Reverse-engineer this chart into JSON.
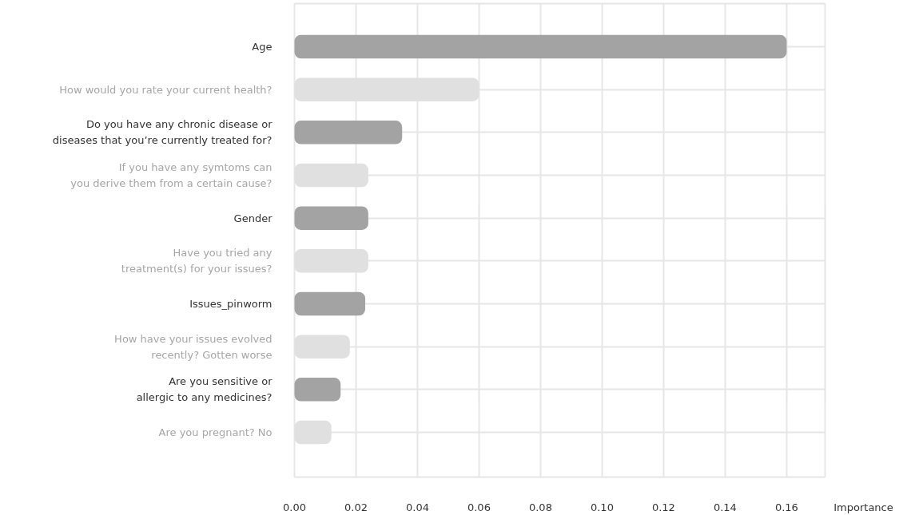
{
  "chart_data": {
    "type": "bar",
    "orientation": "horizontal",
    "xlabel": "Importance",
    "categories": [
      "Age",
      "How would you rate your current health?",
      "Do you have any chronic disease or\ndiseases that you’re currently treated for?",
      "If you have any symtoms can\nyou derive them from a certain cause?",
      "Gender",
      "Have you tried any\ntreatment(s) for your issues?",
      "Issues_pinworm",
      "How have your issues evolved\nrecently? Gotten worse",
      "Are you sensitive or\nallergic to any medicines?",
      "Are you pregnant? No"
    ],
    "values": [
      0.16,
      0.06,
      0.035,
      0.024,
      0.024,
      0.024,
      0.023,
      0.018,
      0.015,
      0.012
    ],
    "colors": [
      "#a3a3a3",
      "#e0e0e0",
      "#a3a3a3",
      "#e0e0e0",
      "#a3a3a3",
      "#e0e0e0",
      "#a3a3a3",
      "#e0e0e0",
      "#a3a3a3",
      "#e0e0e0"
    ],
    "xlim": [
      0,
      0.1725
    ],
    "xticks": [
      {
        "value": 0,
        "label": "0.00"
      },
      {
        "value": 0.02,
        "label": "0.02"
      },
      {
        "value": 0.04,
        "label": "0.04"
      },
      {
        "value": 0.06,
        "label": "0.06"
      },
      {
        "value": 0.08,
        "label": "0.08"
      },
      {
        "value": 0.1,
        "label": "0.10"
      },
      {
        "value": 0.12,
        "label": "0.12"
      },
      {
        "value": 0.14,
        "label": "0.14"
      },
      {
        "value": 0.16,
        "label": "0.16"
      }
    ],
    "grid": true
  }
}
